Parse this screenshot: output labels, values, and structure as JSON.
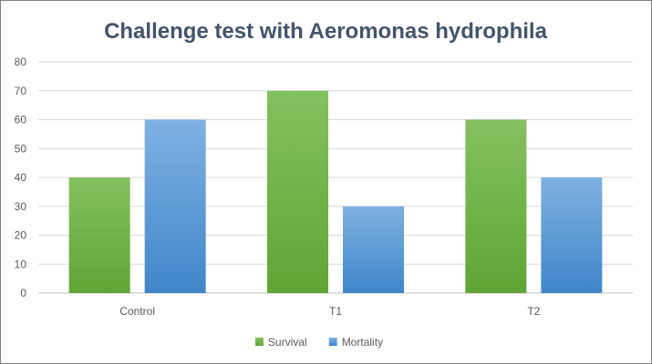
{
  "chart_data": {
    "type": "bar",
    "title": "Challenge test with Aeromonas hydrophila",
    "categories": [
      "Control",
      "T1",
      "T2"
    ],
    "series": [
      {
        "name": "Survival",
        "values": [
          40,
          70,
          60
        ],
        "color": "#6ab344"
      },
      {
        "name": "Mortality",
        "values": [
          60,
          30,
          40
        ],
        "color": "#5b9bd5"
      }
    ],
    "ylim": [
      0,
      80
    ],
    "yticks": [
      0,
      10,
      20,
      30,
      40,
      50,
      60,
      70,
      80
    ],
    "grid": true,
    "legend_position": "bottom"
  }
}
